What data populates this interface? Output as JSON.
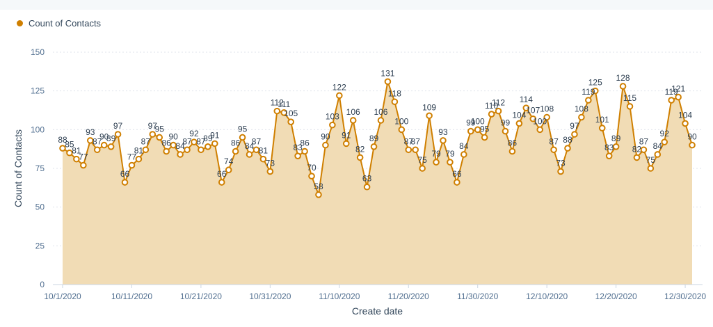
{
  "legend": {
    "label": "Count of Contacts",
    "color": "#cf7f00"
  },
  "chart_data": {
    "type": "area",
    "title": "",
    "xlabel": "Create date",
    "ylabel": "Count of Contacts",
    "ylim": [
      0,
      150
    ],
    "yticks": [
      0,
      25,
      50,
      75,
      100,
      125,
      150
    ],
    "xtick_labels": [
      "10/1/2020",
      "10/11/2020",
      "10/21/2020",
      "10/31/2020",
      "11/10/2020",
      "11/20/2020",
      "11/30/2020",
      "12/10/2020",
      "12/20/2020",
      "12/30/2020"
    ],
    "grid": true,
    "legend_position": "top-left",
    "line_color": "#cf7f00",
    "fill_color": "#f1dcb5",
    "x_start": "10/1/2020",
    "x_end": "12/31/2020",
    "series": [
      {
        "name": "Count of Contacts",
        "values": [
          88,
          85,
          81,
          77,
          93,
          87,
          90,
          89,
          97,
          66,
          77,
          81,
          87,
          97,
          95,
          86,
          90,
          84,
          87,
          92,
          87,
          89,
          91,
          66,
          74,
          86,
          95,
          84,
          87,
          81,
          73,
          112,
          111,
          105,
          83,
          86,
          70,
          58,
          90,
          103,
          122,
          91,
          106,
          82,
          63,
          89,
          106,
          131,
          118,
          100,
          87,
          87,
          75,
          109,
          79,
          93,
          79,
          66,
          84,
          99,
          100,
          95,
          110,
          112,
          99,
          86,
          104,
          114,
          107,
          100,
          108,
          87,
          73,
          88,
          97,
          108,
          119,
          125,
          101,
          83,
          89,
          128,
          115,
          82,
          87,
          75,
          84,
          92,
          119,
          121,
          104,
          90
        ]
      }
    ]
  }
}
